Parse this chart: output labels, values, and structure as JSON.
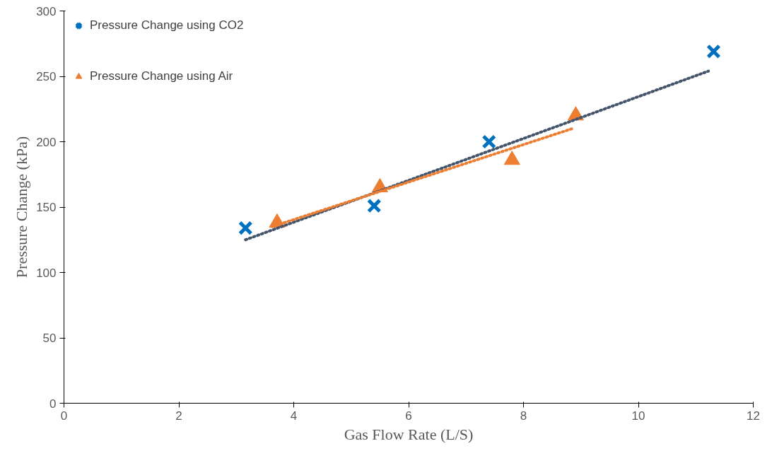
{
  "chart_data": {
    "type": "scatter",
    "xlabel": "Gas Flow Rate (L/S)",
    "ylabel": "Pressure Change (kPa)",
    "xlim": [
      0,
      12
    ],
    "ylim": [
      0,
      300
    ],
    "xticks": [
      0,
      2,
      4,
      6,
      8,
      10,
      12
    ],
    "yticks": [
      0,
      50,
      100,
      150,
      200,
      250,
      300
    ],
    "grid": false,
    "legend": "top left",
    "series": [
      {
        "name": "Pressure Change using CO2",
        "color": "#0070c0",
        "marker": "cross",
        "x": [
          3.16,
          5.4,
          7.4,
          11.31
        ],
        "values": [
          134,
          151,
          200,
          269
        ]
      },
      {
        "name": "Pressure Change using Air",
        "color": "#ed7d31",
        "marker": "triangle",
        "x": [
          3.71,
          5.5,
          7.8,
          8.91
        ],
        "values": [
          138,
          165,
          186,
          220
        ]
      },
      {
        "type": "line",
        "color": "#44546a",
        "line_style": "dotted",
        "x": [
          3.16,
          11.22
        ],
        "values": [
          125,
          254
        ]
      },
      {
        "type": "line",
        "color": "#ed7d31",
        "line_style": "dotted",
        "x": [
          3.62,
          8.85
        ],
        "values": [
          135,
          210
        ]
      }
    ]
  }
}
